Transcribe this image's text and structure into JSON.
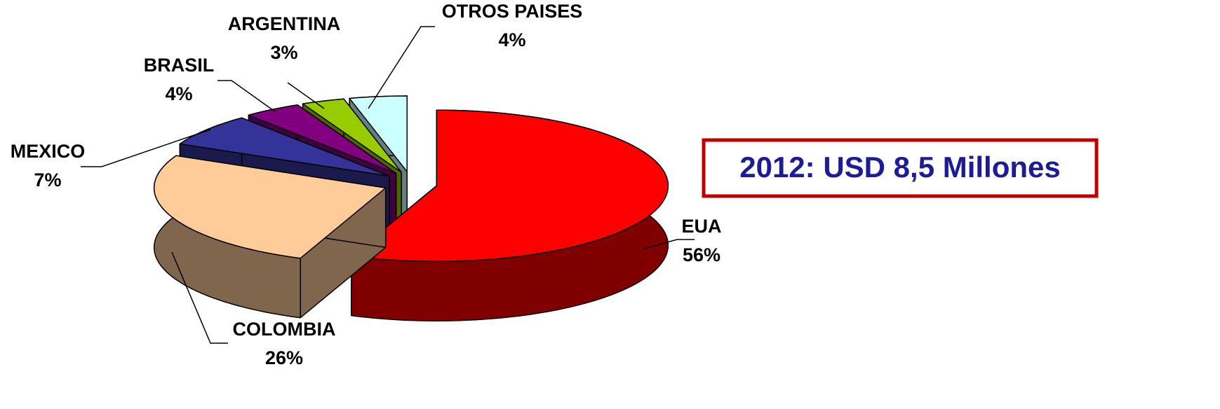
{
  "chart_data": {
    "type": "pie",
    "three_d": true,
    "categories": [
      "EUA",
      "COLOMBIA",
      "MEXICO",
      "BRASIL",
      "ARGENTINA",
      "OTROS PAISES"
    ],
    "values": [
      56,
      26,
      7,
      4,
      3,
      4
    ],
    "value_labels": [
      "56%",
      "26%",
      "7%",
      "4%",
      "3%",
      "4%"
    ],
    "colors": [
      "#ff0000",
      "#ffcc99",
      "#333399",
      "#800080",
      "#99cc00",
      "#ccffff"
    ],
    "annotation": "2012: USD 8,5 Millones"
  }
}
